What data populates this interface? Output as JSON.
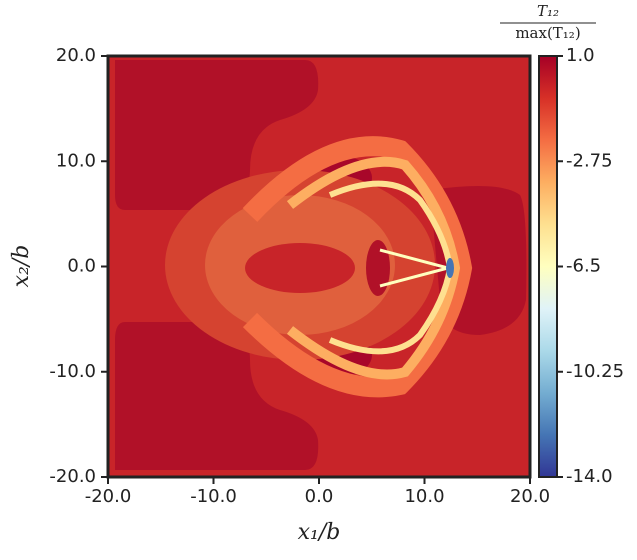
{
  "chart_data": {
    "type": "contour",
    "xlabel": "x₁/b",
    "ylabel": "x₂/b",
    "xlim": [
      -20,
      20
    ],
    "ylim": [
      -20,
      20
    ],
    "xticks": [
      {
        "value": -20,
        "label": "-20.0"
      },
      {
        "value": -10,
        "label": "-10.0"
      },
      {
        "value": 0,
        "label": "0.0"
      },
      {
        "value": 10,
        "label": "10.0"
      },
      {
        "value": 20,
        "label": "20.0"
      }
    ],
    "yticks": [
      {
        "value": -20,
        "label": "-20.0"
      },
      {
        "value": -10,
        "label": "-10.0"
      },
      {
        "value": 0,
        "label": "0.0"
      },
      {
        "value": 10,
        "label": "10.0"
      },
      {
        "value": 20,
        "label": "20.0"
      }
    ],
    "colorbar": {
      "label_numerator": "T₁₂",
      "label_denominator": "max(T₁₂)",
      "lim": [
        -14,
        1
      ],
      "ticks": [
        {
          "value": 1,
          "label": "1.0"
        },
        -2.75,
        -6.5,
        -10.25,
        {
          "value": -14,
          "label": "-14.0"
        }
      ]
    }
  }
}
